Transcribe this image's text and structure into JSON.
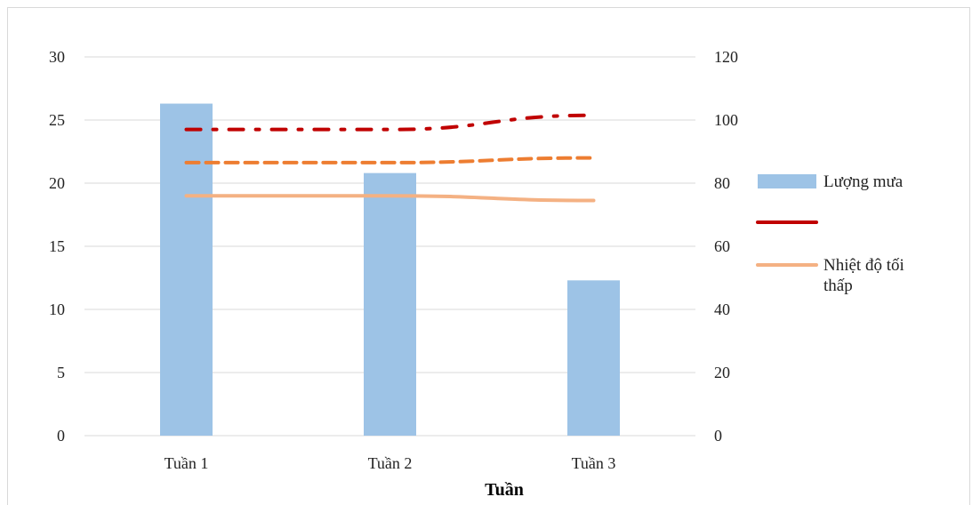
{
  "chart_data": {
    "type": "bar",
    "categories": [
      "Tuần 1",
      "Tuần 2",
      "Tuần 3"
    ],
    "xlabel": "Tuần",
    "ylabel": "",
    "title": "",
    "ylim": [
      0,
      30
    ],
    "y2lim": [
      0,
      120
    ],
    "y_ticks": [
      "0",
      "5",
      "10",
      "15",
      "20",
      "25",
      "30"
    ],
    "y2_ticks": [
      "0",
      "20",
      "40",
      "60",
      "80",
      "100",
      "120"
    ],
    "grid": true,
    "legend_position": "right",
    "series": [
      {
        "name": "Lượng mưa",
        "type": "bar",
        "axis": "left",
        "color": "#9dc3e6",
        "values": [
          26.3,
          20.8,
          12.3
        ]
      },
      {
        "name": "",
        "type": "line",
        "axis": "right",
        "style": "dash-dot",
        "color": "#c00000",
        "values": [
          97,
          97,
          101.5
        ]
      },
      {
        "name": "",
        "type": "line",
        "axis": "right",
        "style": "dashed",
        "color": "#ed7d31",
        "values": [
          86.5,
          86.5,
          88
        ]
      },
      {
        "name": "Nhiệt độ tối thấp",
        "type": "line",
        "axis": "right",
        "style": "solid",
        "color": "#f4b183",
        "values": [
          76,
          76,
          74.5
        ]
      }
    ],
    "legend": [
      {
        "label_lines": [
          "Lượng mưa"
        ],
        "series": 0
      },
      {
        "label_lines": [
          ""
        ],
        "series": 1
      },
      {
        "label_lines": [
          "Nhiệt độ tối",
          "thấp"
        ],
        "series": 3
      }
    ]
  }
}
